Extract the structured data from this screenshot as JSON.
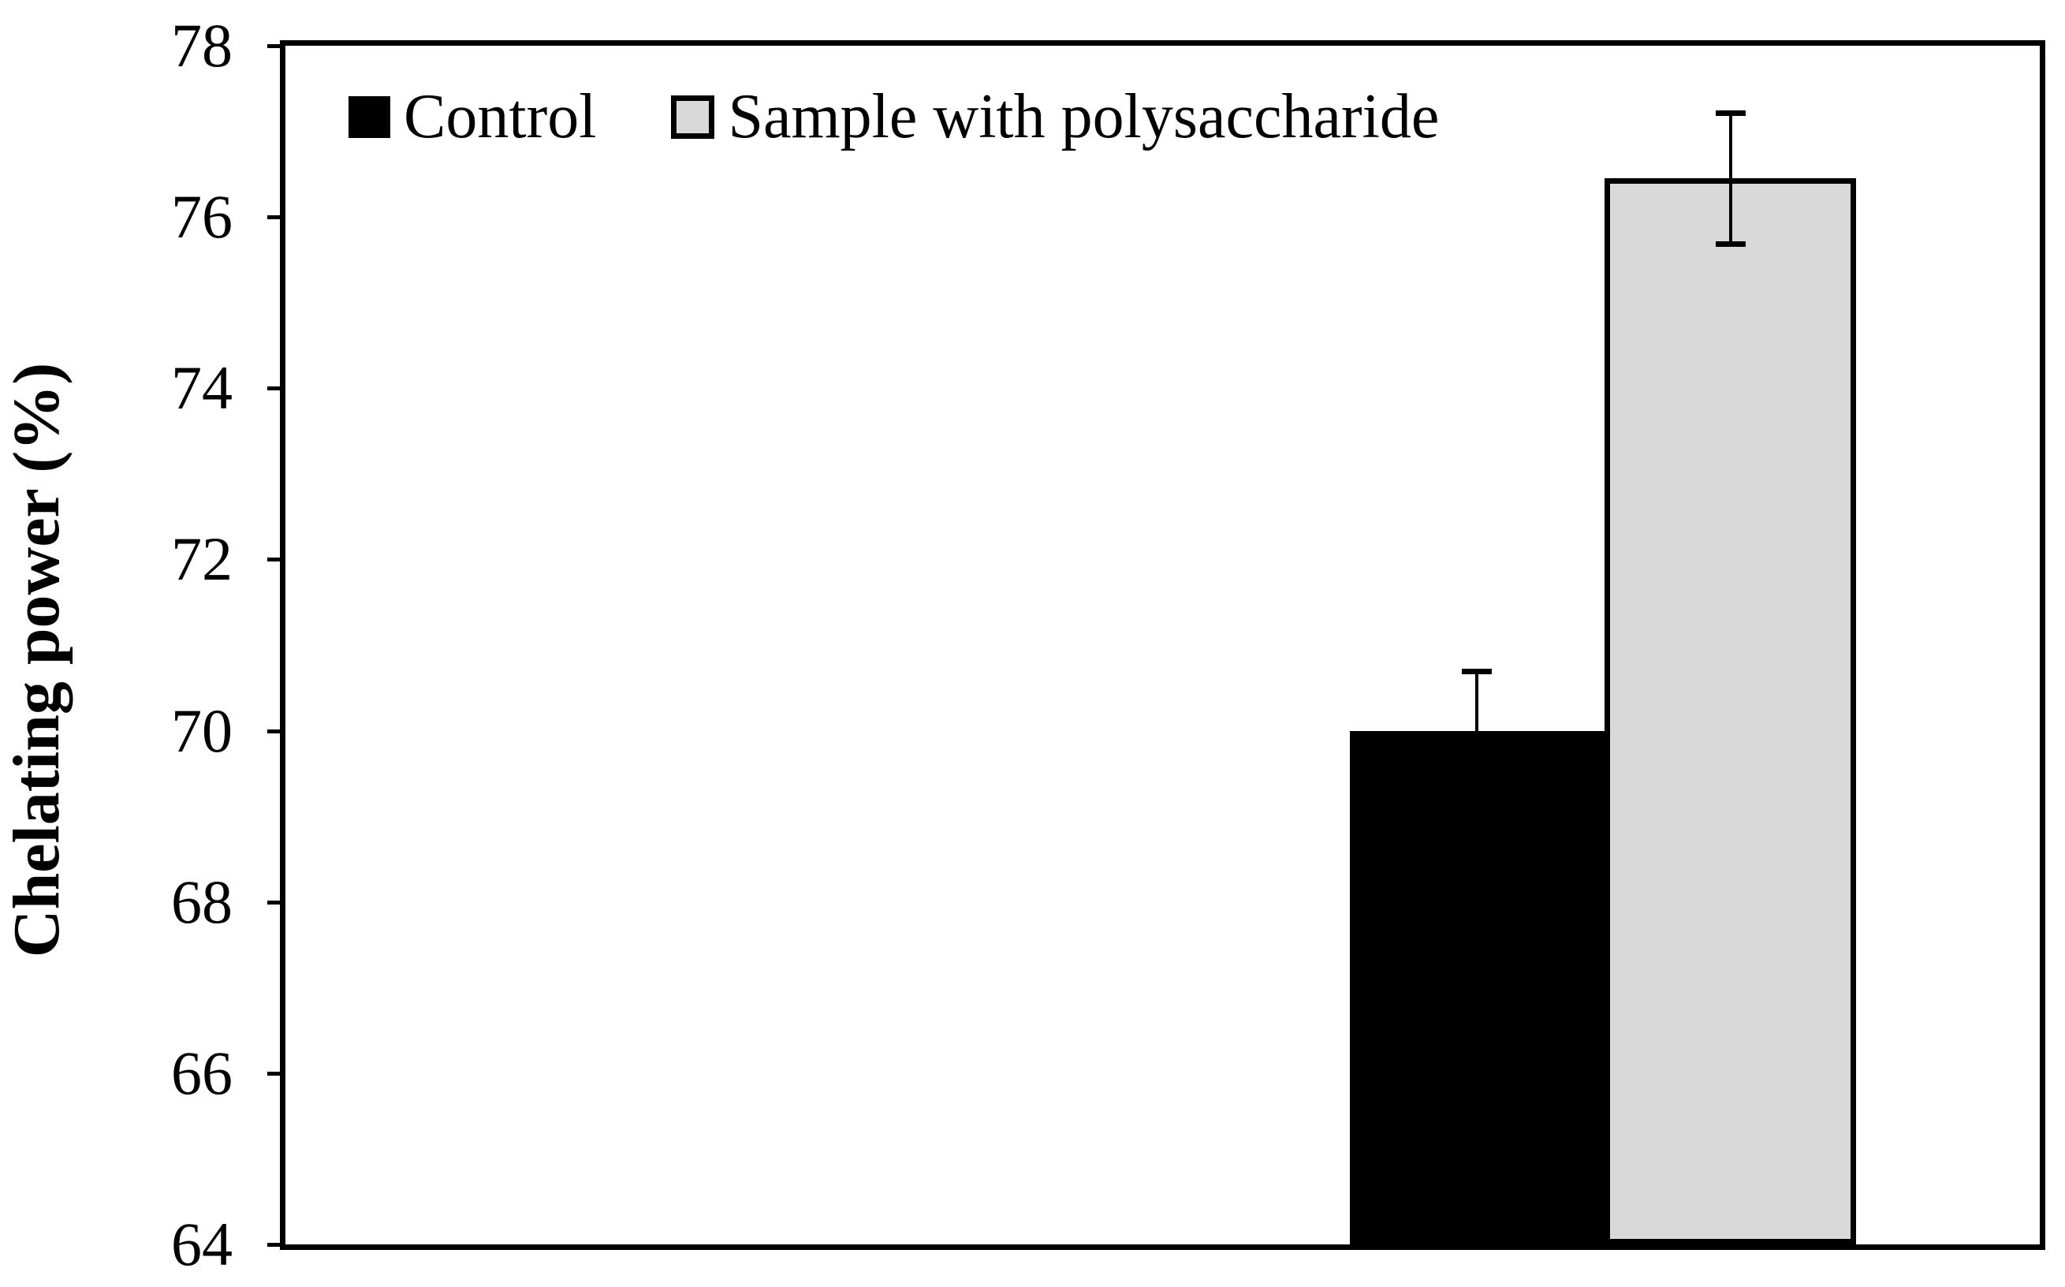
{
  "chart_data": {
    "type": "bar",
    "title": "",
    "xlabel": "",
    "ylabel": "Chelating power (%)",
    "ylim": [
      64,
      78
    ],
    "yticks": [
      64,
      66,
      68,
      70,
      72,
      74,
      76,
      78
    ],
    "grid": false,
    "legend_position": "top-left-inside",
    "categories": [
      ""
    ],
    "series": [
      {
        "name": "Control",
        "values": [
          70.0
        ],
        "error": [
          0.7
        ],
        "fill": "#000000",
        "border": "#000000"
      },
      {
        "name": "Sample with polysaccharide",
        "values": [
          76.45
        ],
        "error": [
          0.77
        ],
        "fill": "#d9d9d9",
        "border": "#000000"
      }
    ],
    "error_bar_color": "#000000",
    "frame_color": "#000000",
    "background_color": "#ffffff"
  }
}
